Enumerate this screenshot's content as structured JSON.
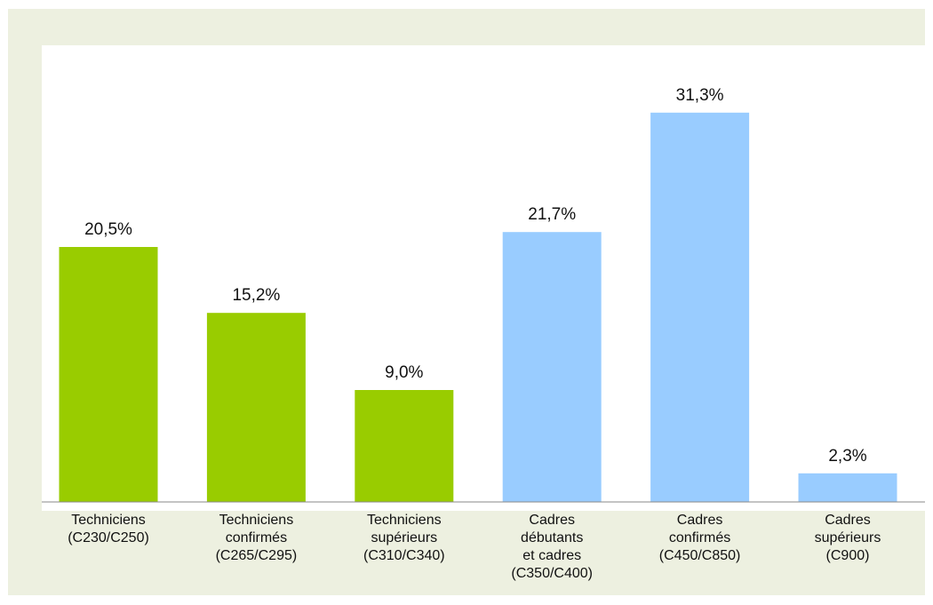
{
  "chart_data": {
    "type": "bar",
    "title": "",
    "xlabel": "",
    "ylabel": "",
    "ylim": [
      0,
      35
    ],
    "grid": false,
    "legend": "none",
    "colors": {
      "background": "#edf0e0",
      "plot_area": "#ffffff",
      "axis_line": "#8a8a8a",
      "techniciens": "#99cc00",
      "cadres": "#99ccff"
    },
    "categories": [
      [
        "Techniciens",
        "(C230/C250)"
      ],
      [
        "Techniciens",
        "confirmés",
        "(C265/C295)"
      ],
      [
        "Techniciens",
        "supérieurs",
        "(C310/C340)"
      ],
      [
        "Cadres",
        "débutants",
        "et cadres",
        "(C350/C400)"
      ],
      [
        "Cadres",
        "confirmés",
        "(C450/C850)"
      ],
      [
        "Cadres",
        "supérieurs",
        "(C900)"
      ]
    ],
    "values": [
      20.5,
      15.2,
      9.0,
      21.7,
      31.3,
      2.3
    ],
    "value_labels": [
      "20,5%",
      "15,2%",
      "9,0%",
      "21,7%",
      "31,3%",
      "2,3%"
    ],
    "bar_groups": [
      "techniciens",
      "techniciens",
      "techniciens",
      "cadres",
      "cadres",
      "cadres"
    ]
  }
}
